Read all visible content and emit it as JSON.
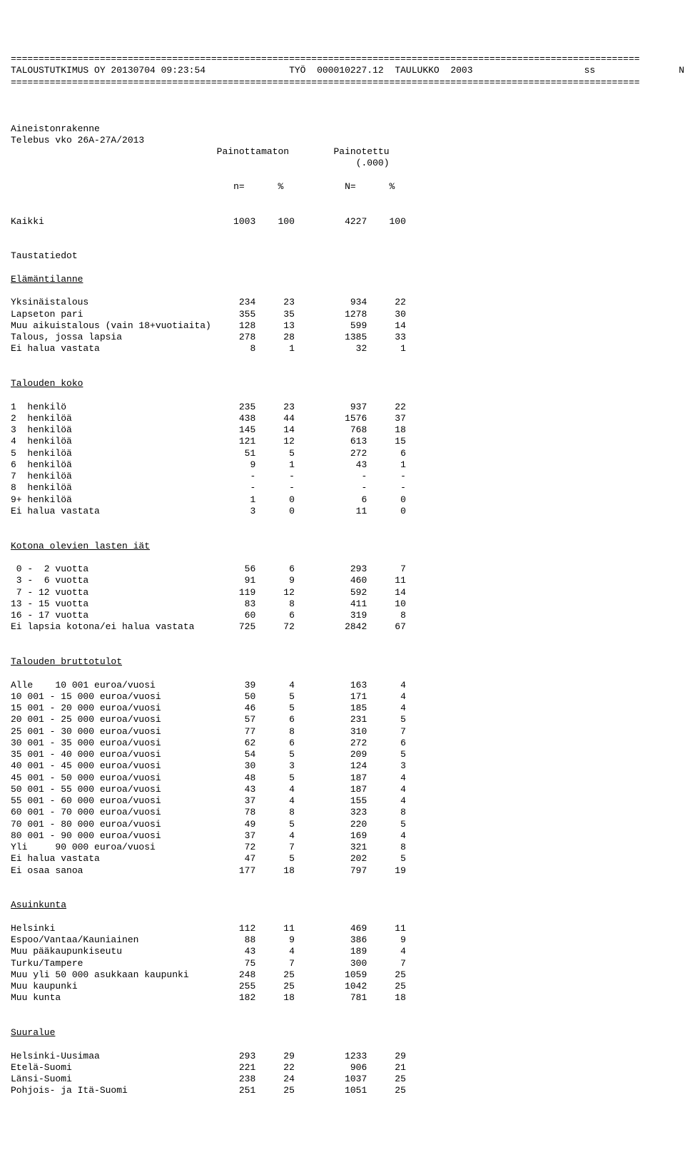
{
  "header": {
    "line": "=================================================================================================================",
    "company": "TALOUSTUTKIMUS OY 20130704 09:23:54",
    "work": "TYÖ  000010227.12",
    "table": "TAULUKKO  2003",
    "ss": "ss",
    "right": "N-LUVUT"
  },
  "intro": {
    "l1": "Aineistonrakenne",
    "l2": "Telebus vko 26A-27A/2013",
    "colhead1": "Painottamaton",
    "colhead2": "Painotettu",
    "colhead3": "(.000)",
    "subhead": "n=      %           N=      %"
  },
  "kaikki": {
    "label": "Kaikki",
    "n": "1003",
    "p1": "100",
    "N": "4227",
    "p2": "100"
  },
  "tausta": "Taustatiedot",
  "s1": {
    "title": "Elämäntilanne",
    "rows": [
      {
        "l": "Yksinäistalous",
        "n": "234",
        "p1": "23",
        "N": "934",
        "p2": "22"
      },
      {
        "l": "Lapseton pari",
        "n": "355",
        "p1": "35",
        "N": "1278",
        "p2": "30"
      },
      {
        "l": "Muu aikuistalous (vain 18+vuotiaita)",
        "n": "128",
        "p1": "13",
        "N": "599",
        "p2": "14"
      },
      {
        "l": "Talous, jossa lapsia",
        "n": "278",
        "p1": "28",
        "N": "1385",
        "p2": "33"
      },
      {
        "l": "Ei halua vastata",
        "n": "8",
        "p1": "1",
        "N": "32",
        "p2": "1"
      }
    ]
  },
  "s2": {
    "title": "Talouden koko",
    "rows": [
      {
        "l": "1  henkilö",
        "n": "235",
        "p1": "23",
        "N": "937",
        "p2": "22"
      },
      {
        "l": "2  henkilöä",
        "n": "438",
        "p1": "44",
        "N": "1576",
        "p2": "37"
      },
      {
        "l": "3  henkilöä",
        "n": "145",
        "p1": "14",
        "N": "768",
        "p2": "18"
      },
      {
        "l": "4  henkilöä",
        "n": "121",
        "p1": "12",
        "N": "613",
        "p2": "15"
      },
      {
        "l": "5  henkilöä",
        "n": "51",
        "p1": "5",
        "N": "272",
        "p2": "6"
      },
      {
        "l": "6  henkilöä",
        "n": "9",
        "p1": "1",
        "N": "43",
        "p2": "1"
      },
      {
        "l": "7  henkilöä",
        "n": "-",
        "p1": "-",
        "N": "-",
        "p2": "-"
      },
      {
        "l": "8  henkilöä",
        "n": "-",
        "p1": "-",
        "N": "-",
        "p2": "-"
      },
      {
        "l": "9+ henkilöä",
        "n": "1",
        "p1": "0",
        "N": "6",
        "p2": "0"
      },
      {
        "l": "Ei halua vastata",
        "n": "3",
        "p1": "0",
        "N": "11",
        "p2": "0"
      }
    ]
  },
  "s3": {
    "title": "Kotona olevien lasten iät",
    "rows": [
      {
        "l": " 0 -  2 vuotta",
        "n": "56",
        "p1": "6",
        "N": "293",
        "p2": "7"
      },
      {
        "l": " 3 -  6 vuotta",
        "n": "91",
        "p1": "9",
        "N": "460",
        "p2": "11"
      },
      {
        "l": " 7 - 12 vuotta",
        "n": "119",
        "p1": "12",
        "N": "592",
        "p2": "14"
      },
      {
        "l": "13 - 15 vuotta",
        "n": "83",
        "p1": "8",
        "N": "411",
        "p2": "10"
      },
      {
        "l": "16 - 17 vuotta",
        "n": "60",
        "p1": "6",
        "N": "319",
        "p2": "8"
      },
      {
        "l": "Ei lapsia kotona/ei halua vastata",
        "n": "725",
        "p1": "72",
        "N": "2842",
        "p2": "67"
      }
    ]
  },
  "s4": {
    "title": "Talouden bruttotulot",
    "rows": [
      {
        "l": "Alle    10 001 euroa/vuosi",
        "n": "39",
        "p1": "4",
        "N": "163",
        "p2": "4"
      },
      {
        "l": "10 001 - 15 000 euroa/vuosi",
        "n": "50",
        "p1": "5",
        "N": "171",
        "p2": "4"
      },
      {
        "l": "15 001 - 20 000 euroa/vuosi",
        "n": "46",
        "p1": "5",
        "N": "185",
        "p2": "4"
      },
      {
        "l": "20 001 - 25 000 euroa/vuosi",
        "n": "57",
        "p1": "6",
        "N": "231",
        "p2": "5"
      },
      {
        "l": "25 001 - 30 000 euroa/vuosi",
        "n": "77",
        "p1": "8",
        "N": "310",
        "p2": "7"
      },
      {
        "l": "30 001 - 35 000 euroa/vuosi",
        "n": "62",
        "p1": "6",
        "N": "272",
        "p2": "6"
      },
      {
        "l": "35 001 - 40 000 euroa/vuosi",
        "n": "54",
        "p1": "5",
        "N": "209",
        "p2": "5"
      },
      {
        "l": "40 001 - 45 000 euroa/vuosi",
        "n": "30",
        "p1": "3",
        "N": "124",
        "p2": "3"
      },
      {
        "l": "45 001 - 50 000 euroa/vuosi",
        "n": "48",
        "p1": "5",
        "N": "187",
        "p2": "4"
      },
      {
        "l": "50 001 - 55 000 euroa/vuosi",
        "n": "43",
        "p1": "4",
        "N": "187",
        "p2": "4"
      },
      {
        "l": "55 001 - 60 000 euroa/vuosi",
        "n": "37",
        "p1": "4",
        "N": "155",
        "p2": "4"
      },
      {
        "l": "60 001 - 70 000 euroa/vuosi",
        "n": "78",
        "p1": "8",
        "N": "323",
        "p2": "8"
      },
      {
        "l": "70 001 - 80 000 euroa/vuosi",
        "n": "49",
        "p1": "5",
        "N": "220",
        "p2": "5"
      },
      {
        "l": "80 001 - 90 000 euroa/vuosi",
        "n": "37",
        "p1": "4",
        "N": "169",
        "p2": "4"
      },
      {
        "l": "Yli     90 000 euroa/vuosi",
        "n": "72",
        "p1": "7",
        "N": "321",
        "p2": "8"
      },
      {
        "l": "Ei halua vastata",
        "n": "47",
        "p1": "5",
        "N": "202",
        "p2": "5"
      },
      {
        "l": "Ei osaa sanoa",
        "n": "177",
        "p1": "18",
        "N": "797",
        "p2": "19"
      }
    ]
  },
  "s5": {
    "title": "Asuinkunta",
    "rows": [
      {
        "l": "Helsinki",
        "n": "112",
        "p1": "11",
        "N": "469",
        "p2": "11"
      },
      {
        "l": "Espoo/Vantaa/Kauniainen",
        "n": "88",
        "p1": "9",
        "N": "386",
        "p2": "9"
      },
      {
        "l": "Muu pääkaupunkiseutu",
        "n": "43",
        "p1": "4",
        "N": "189",
        "p2": "4"
      },
      {
        "l": "Turku/Tampere",
        "n": "75",
        "p1": "7",
        "N": "300",
        "p2": "7"
      },
      {
        "l": "Muu yli 50 000 asukkaan kaupunki",
        "n": "248",
        "p1": "25",
        "N": "1059",
        "p2": "25"
      },
      {
        "l": "Muu kaupunki",
        "n": "255",
        "p1": "25",
        "N": "1042",
        "p2": "25"
      },
      {
        "l": "Muu kunta",
        "n": "182",
        "p1": "18",
        "N": "781",
        "p2": "18"
      }
    ]
  },
  "s6": {
    "title": "Suuralue",
    "rows": [
      {
        "l": "Helsinki-Uusimaa",
        "n": "293",
        "p1": "29",
        "N": "1233",
        "p2": "29"
      },
      {
        "l": "Etelä-Suomi",
        "n": "221",
        "p1": "22",
        "N": "906",
        "p2": "21"
      },
      {
        "l": "Länsi-Suomi",
        "n": "238",
        "p1": "24",
        "N": "1037",
        "p2": "25"
      },
      {
        "l": "Pohjois- ja Itä-Suomi",
        "n": "251",
        "p1": "25",
        "N": "1051",
        "p2": "25"
      }
    ]
  },
  "layout": {
    "labelW": 38,
    "col_n": 6,
    "col_p1": 7,
    "col_N": 13,
    "col_p2": 7
  }
}
